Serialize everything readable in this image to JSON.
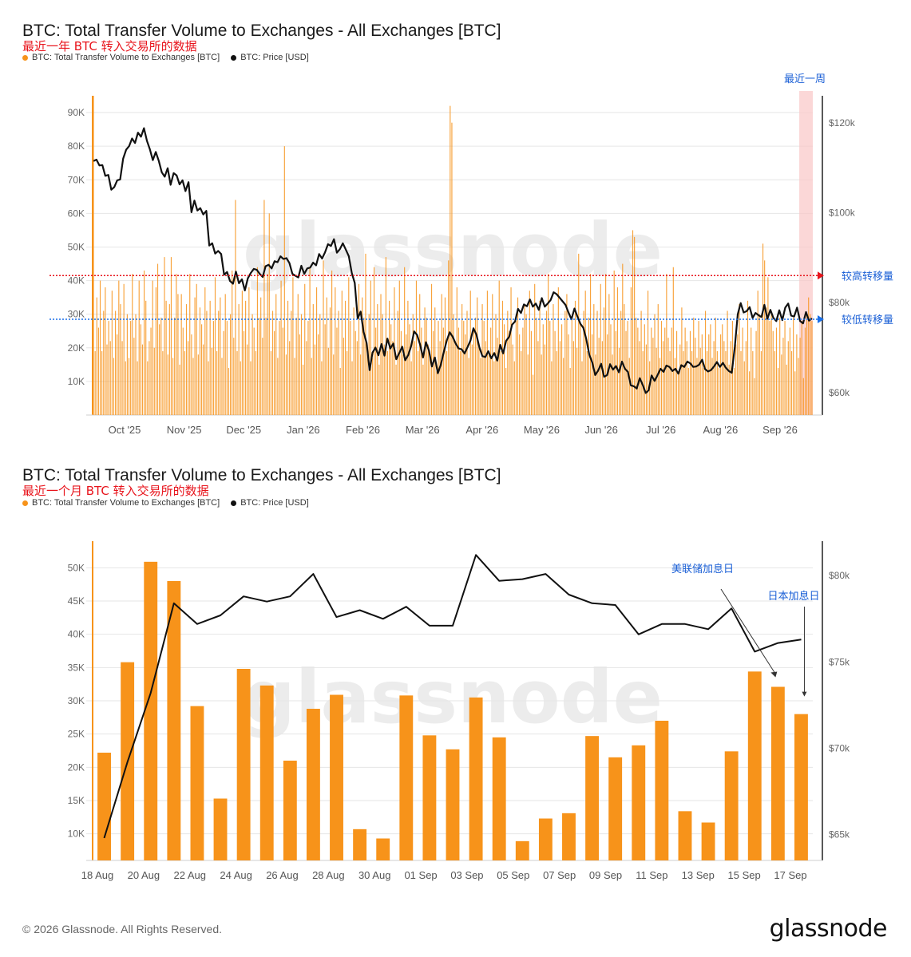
{
  "chart1": {
    "title": "BTC: Total Transfer Volume to Exchanges - All Exchanges [BTC]",
    "subtitle": "最近一年 BTC 转入交易所的数据",
    "legend": [
      {
        "label": "BTC: Total Transfer Volume to Exchanges [BTC]",
        "color": "#f7931a"
      },
      {
        "label": "BTC: Price [USD]",
        "color": "#111111"
      }
    ],
    "watermark": "glassnode",
    "annotations": {
      "recent_week": "最近一周",
      "high_volume": "较高转移量",
      "low_volume": "较低转移量"
    }
  },
  "chart2": {
    "title": "BTC: Total Transfer Volume to Exchanges - All Exchanges [BTC]",
    "subtitle": "最近一个月 BTC 转入交易所的数据",
    "legend": [
      {
        "label": "BTC: Total Transfer Volume to Exchanges [BTC]",
        "color": "#f7931a"
      },
      {
        "label": "BTC: Price [USD]",
        "color": "#111111"
      }
    ],
    "watermark": "glassnode",
    "annotations": {
      "fed_hike": "美联储加息日",
      "japan_hike": "日本加息日"
    }
  },
  "footer": {
    "copyright": "© 2026 Glassnode. All Rights Reserved.",
    "brand": "glassnode"
  },
  "chart_data": [
    {
      "type": "bar",
      "title": "BTC: Total Transfer Volume to Exchanges - All Exchanges [BTC]",
      "subtitle": "最近一年 BTC 转入交易所的数据",
      "x_tick_labels": [
        "Oct '25",
        "Nov '25",
        "Dec '25",
        "Jan '26",
        "Feb '26",
        "Mar '26",
        "Apr '26",
        "May '26",
        "Jun '26",
        "Jul '26",
        "Aug '26",
        "Sep '26"
      ],
      "y_left_ticks": [
        "10K",
        "20K",
        "30K",
        "40K",
        "50K",
        "60K",
        "70K",
        "80K",
        "90K"
      ],
      "y_left_range": [
        0,
        95000
      ],
      "y_right_ticks": [
        "$60k",
        "$80k",
        "$100k",
        "$120k"
      ],
      "y_right_range": [
        55000,
        126000
      ],
      "reference_lines": [
        {
          "label": "较高转移量",
          "value": 41500,
          "color": "#e8141c"
        },
        {
          "label": "较低转移量",
          "value": 28500,
          "color": "#1a6fe8"
        }
      ],
      "highlight": {
        "label": "最近一周",
        "color": "#f9c6c6"
      },
      "series": [
        {
          "name": "BTC: Total Transfer Volume to Exchanges [BTC]",
          "kind": "bar",
          "color": "#f7931a",
          "values": [
            95000,
            19000,
            35000,
            26000,
            40000,
            19000,
            31000,
            38000,
            21000,
            28000,
            22000,
            37000,
            17000,
            31000,
            24000,
            40000,
            33000,
            22000,
            39000,
            16000,
            30000,
            17000,
            28000,
            42000,
            23000,
            30000,
            16000,
            40000,
            27000,
            21000,
            43000,
            34000,
            16000,
            22000,
            26000,
            40000,
            20000,
            38000,
            45000,
            27000,
            29000,
            19000,
            47000,
            34000,
            18000,
            33000,
            47000,
            17000,
            29000,
            42000,
            36000,
            15000,
            36000,
            26000,
            19000,
            33000,
            22000,
            42000,
            24000,
            17000,
            35000,
            39000,
            18000,
            32000,
            27000,
            21000,
            38000,
            31000,
            16000,
            34000,
            20000,
            28000,
            41000,
            19000,
            31000,
            35000,
            17000,
            25000,
            36000,
            28000,
            14000,
            30000,
            43000,
            23000,
            64000,
            19000,
            33000,
            16000,
            37000,
            25000,
            34000,
            21000,
            38000,
            16000,
            30000,
            26000,
            19000,
            44000,
            29000,
            35000,
            23000,
            64000,
            29000,
            42000,
            60000,
            19000,
            31000,
            25000,
            36000,
            17000,
            28000,
            40000,
            26000,
            80000,
            18000,
            34000,
            22000,
            31000,
            41000,
            17000,
            29000,
            36000,
            24000,
            30000,
            15000,
            39000,
            22000,
            28000,
            44000,
            17000,
            33000,
            21000,
            38000,
            24000,
            30000,
            16000,
            46000,
            27000,
            35000,
            20000,
            32000,
            43000,
            18000,
            38000,
            26000,
            31000,
            14000,
            37000,
            23000,
            34000,
            19000,
            41000,
            28000,
            16000,
            32000,
            25000,
            22000,
            39000,
            18000,
            35000,
            29000,
            48000,
            21000,
            30000,
            40000,
            17000,
            44000,
            26000,
            33000,
            15000,
            36000,
            30000,
            21000,
            47000,
            19000,
            34000,
            27000,
            22000,
            38000,
            15000,
            31000,
            40000,
            25000,
            18000,
            44000,
            24000,
            34000,
            27000,
            16000,
            30000,
            22000,
            40000,
            19000,
            36000,
            26000,
            15000,
            32000,
            29000,
            21000,
            17000,
            39000,
            25000,
            32000,
            13000,
            28000,
            22000,
            36000,
            26000,
            35000,
            19000,
            46000,
            92000,
            87000,
            30000,
            22000,
            38000,
            26000,
            19000,
            33000,
            28000,
            24000,
            31000,
            17000,
            37000,
            21000,
            25000,
            29000,
            35000,
            21000,
            17000,
            33000,
            28000,
            22000,
            37000,
            19000,
            26000,
            36000,
            16000,
            30000,
            23000,
            40000,
            19000,
            34000,
            27000,
            14000,
            31000,
            25000,
            38000,
            21000,
            16000,
            28000,
            35000,
            24000,
            19000,
            26000,
            33000,
            30000,
            18000,
            37000,
            25000,
            12000,
            39000,
            29000,
            22000,
            34000,
            18000,
            27000,
            21000,
            31000,
            42000,
            28000,
            16000,
            33000,
            25000,
            19000,
            38000,
            22000,
            27000,
            17000,
            31000,
            36000,
            24000,
            14000,
            29000,
            22000,
            34000,
            20000,
            48000,
            27000,
            16000,
            31000,
            37000,
            19000,
            29000,
            42000,
            24000,
            33000,
            18000,
            31000,
            23000,
            39000,
            22000,
            32000,
            42000,
            24000,
            36000,
            27000,
            18000,
            43000,
            25000,
            38000,
            20000,
            31000,
            45000,
            33000,
            25000,
            28000,
            17000,
            38000,
            55000,
            53000,
            29000,
            26000,
            22000,
            31000,
            19000,
            27000,
            21000,
            37000,
            16000,
            26000,
            23000,
            30000,
            20000,
            33000,
            17000,
            28000,
            22000,
            26000,
            42000,
            23000,
            19000,
            26000,
            44000,
            17000,
            25000,
            13000,
            21000,
            32000,
            19000,
            26000,
            22000,
            14000,
            25000,
            19000,
            29000,
            23000,
            17000,
            28000,
            20000,
            24000,
            14000,
            31000,
            19000,
            24000,
            27000,
            17000,
            22000,
            29000,
            19000,
            14000,
            24000,
            27000,
            22000,
            19000,
            31000,
            15000,
            22000,
            28000,
            14000,
            21000,
            24000,
            33000,
            19000,
            26000,
            16000,
            22000,
            34000,
            13000,
            26000,
            19000,
            11000,
            25000,
            37000,
            30000,
            19000,
            51000,
            46000,
            32000,
            41000,
            28000,
            30000,
            25000,
            19000,
            26000,
            14000,
            29000,
            18000,
            23000,
            28000,
            15000,
            22000,
            26000,
            19000,
            29000,
            13000,
            24000,
            17000,
            23000,
            28000,
            11000,
            26000,
            30000,
            35000,
            30000,
            28000
          ]
        },
        {
          "name": "BTC: Price [USD]",
          "kind": "line",
          "color": "#111111",
          "axis": "right",
          "values": [
            111500,
            111800,
            110500,
            110600,
            108200,
            108400,
            105100,
            105700,
            107200,
            107400,
            112000,
            114000,
            114800,
            116500,
            115500,
            117800,
            116900,
            118800,
            116000,
            114100,
            111700,
            113500,
            111500,
            109000,
            108000,
            109900,
            106200,
            108800,
            108300,
            106300,
            107200,
            104800,
            106800,
            100100,
            102700,
            100500,
            101000,
            99600,
            100400,
            92700,
            93200,
            90900,
            91500,
            90800,
            86200,
            86800,
            84800,
            84200,
            86900,
            84300,
            85200,
            82700,
            85400,
            86600,
            87500,
            87300,
            86400,
            85700,
            88100,
            88400,
            87600,
            89200,
            89000,
            90300,
            89700,
            89900,
            88800,
            86400,
            86000,
            85600,
            88200,
            86400,
            87600,
            87800,
            88900,
            88300,
            90800,
            89800,
            91200,
            93000,
            92600,
            94100,
            91100,
            91900,
            93200,
            91800,
            90300,
            86600,
            84400,
            76500,
            78000,
            73500,
            71000,
            65000,
            68900,
            70000,
            68300,
            70800,
            68200,
            72000,
            69800,
            70900,
            67400,
            68800,
            70200,
            67200,
            68300,
            70300,
            73600,
            72800,
            70700,
            67800,
            71200,
            69300,
            65800,
            67800,
            64300,
            66200,
            69000,
            71600,
            73400,
            72400,
            70900,
            69800,
            69600,
            68700,
            70100,
            71600,
            74300,
            72900,
            70000,
            68100,
            67900,
            69200,
            67600,
            68800,
            67100,
            70600,
            68700,
            71500,
            72400,
            75100,
            75800,
            78600,
            77700,
            79600,
            79200,
            80700,
            79100,
            79800,
            78400,
            81000,
            79100,
            79800,
            80600,
            82300,
            81900,
            81100,
            80300,
            79500,
            77800,
            76300,
            78700,
            76900,
            75300,
            74400,
            71900,
            68400,
            66700,
            63900,
            64900,
            66400,
            63500,
            63900,
            66300,
            65100,
            65900,
            64500,
            66900,
            65300,
            64600,
            61600,
            61400,
            60900,
            63200,
            61700,
            59900,
            60500,
            63800,
            62600,
            63900,
            65300,
            64600,
            66000,
            65700,
            64800,
            65300,
            64200,
            66100,
            65700,
            66900,
            66500,
            65700,
            65800,
            66200,
            67300,
            65200,
            64700,
            65000,
            65800,
            66800,
            65700,
            66600,
            65500,
            64800,
            64400,
            70100,
            77400,
            79900,
            77800,
            78100,
            79000,
            76600,
            77700,
            77200,
            76800,
            79500,
            76400,
            78400,
            76600,
            75900,
            78300,
            76100,
            78900,
            79800,
            77100,
            76900,
            78900,
            75900,
            75400,
            77900,
            76000,
            76500
          ]
        }
      ]
    },
    {
      "type": "bar",
      "title": "BTC: Total Transfer Volume to Exchanges - All Exchanges [BTC]",
      "subtitle": "最近一个月 BTC 转入交易所的数据",
      "x_tick_labels": [
        "18 Aug",
        "20 Aug",
        "22 Aug",
        "24 Aug",
        "26 Aug",
        "28 Aug",
        "30 Aug",
        "01 Sep",
        "03 Sep",
        "05 Sep",
        "07 Sep",
        "09 Sep",
        "11 Sep",
        "13 Sep",
        "15 Sep",
        "17 Sep"
      ],
      "categories": [
        "18 Aug",
        "19 Aug",
        "20 Aug",
        "21 Aug",
        "22 Aug",
        "23 Aug",
        "24 Aug",
        "25 Aug",
        "26 Aug",
        "27 Aug",
        "28 Aug",
        "29 Aug",
        "30 Aug",
        "31 Aug",
        "01 Sep",
        "02 Sep",
        "03 Sep",
        "04 Sep",
        "05 Sep",
        "06 Sep",
        "07 Sep",
        "08 Sep",
        "09 Sep",
        "10 Sep",
        "11 Sep",
        "12 Sep",
        "13 Sep",
        "14 Sep",
        "15 Sep",
        "16 Sep",
        "17 Sep"
      ],
      "y_left_ticks": [
        "10K",
        "15K",
        "20K",
        "25K",
        "30K",
        "35K",
        "40K",
        "45K",
        "50K"
      ],
      "y_left_range": [
        6000,
        54000
      ],
      "y_right_ticks": [
        "$65k",
        "$70k",
        "$75k",
        "$80k"
      ],
      "y_right_range": [
        63500,
        82000
      ],
      "series": [
        {
          "name": "BTC: Total Transfer Volume to Exchanges [BTC]",
          "kind": "bar",
          "color": "#f7931a",
          "values": [
            22200,
            35800,
            50900,
            48000,
            29200,
            15300,
            34800,
            32300,
            21000,
            28800,
            30900,
            10700,
            9300,
            30800,
            24800,
            22700,
            30500,
            24500,
            8900,
            12300,
            13100,
            24700,
            21500,
            23300,
            27000,
            13400,
            11700,
            22400,
            34400,
            32100,
            28000
          ]
        },
        {
          "name": "BTC: Price [USD]",
          "kind": "line",
          "color": "#111111",
          "axis": "right",
          "values": [
            64800,
            69200,
            73200,
            78400,
            77200,
            77700,
            78800,
            78500,
            78800,
            80100,
            77600,
            78000,
            77500,
            78200,
            77100,
            77100,
            81200,
            79700,
            79800,
            80100,
            78900,
            78400,
            78300,
            76600,
            77200,
            77200,
            76900,
            78100,
            75600,
            76100,
            76300
          ]
        }
      ],
      "annotations": [
        {
          "label": "美联储加息日",
          "category": "16 Sep"
        },
        {
          "label": "日本加息日",
          "category": "17 Sep"
        }
      ]
    }
  ]
}
